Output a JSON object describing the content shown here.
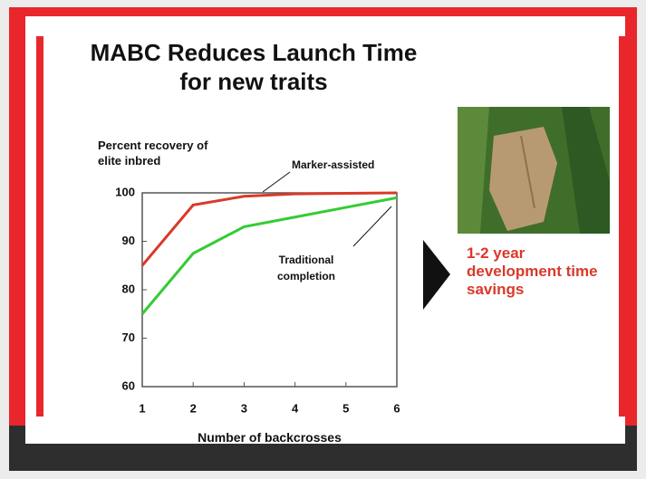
{
  "chart_data": {
    "type": "line",
    "title": "MABC Reduces Launch Time for new traits",
    "y_label": "Percent recovery of elite inbred",
    "x_label": "Number of backcrosses",
    "callout": "1-2 year development time savings",
    "x": [
      1,
      2,
      3,
      4,
      5,
      6
    ],
    "series": [
      {
        "name": "Marker-assisted",
        "color": "#d9392a",
        "values": [
          85,
          97.5,
          99.3,
          99.8,
          99.9,
          100
        ]
      },
      {
        "name": "Traditional completion",
        "color": "#33cc33",
        "values": [
          75,
          87.5,
          93,
          95,
          97,
          99
        ]
      }
    ],
    "xlim": [
      1,
      6
    ],
    "xticks": [
      1,
      2,
      3,
      4,
      5,
      6
    ],
    "ylim": [
      60,
      100
    ],
    "yticks": [
      60,
      70,
      80,
      90,
      100
    ],
    "grid": false
  }
}
